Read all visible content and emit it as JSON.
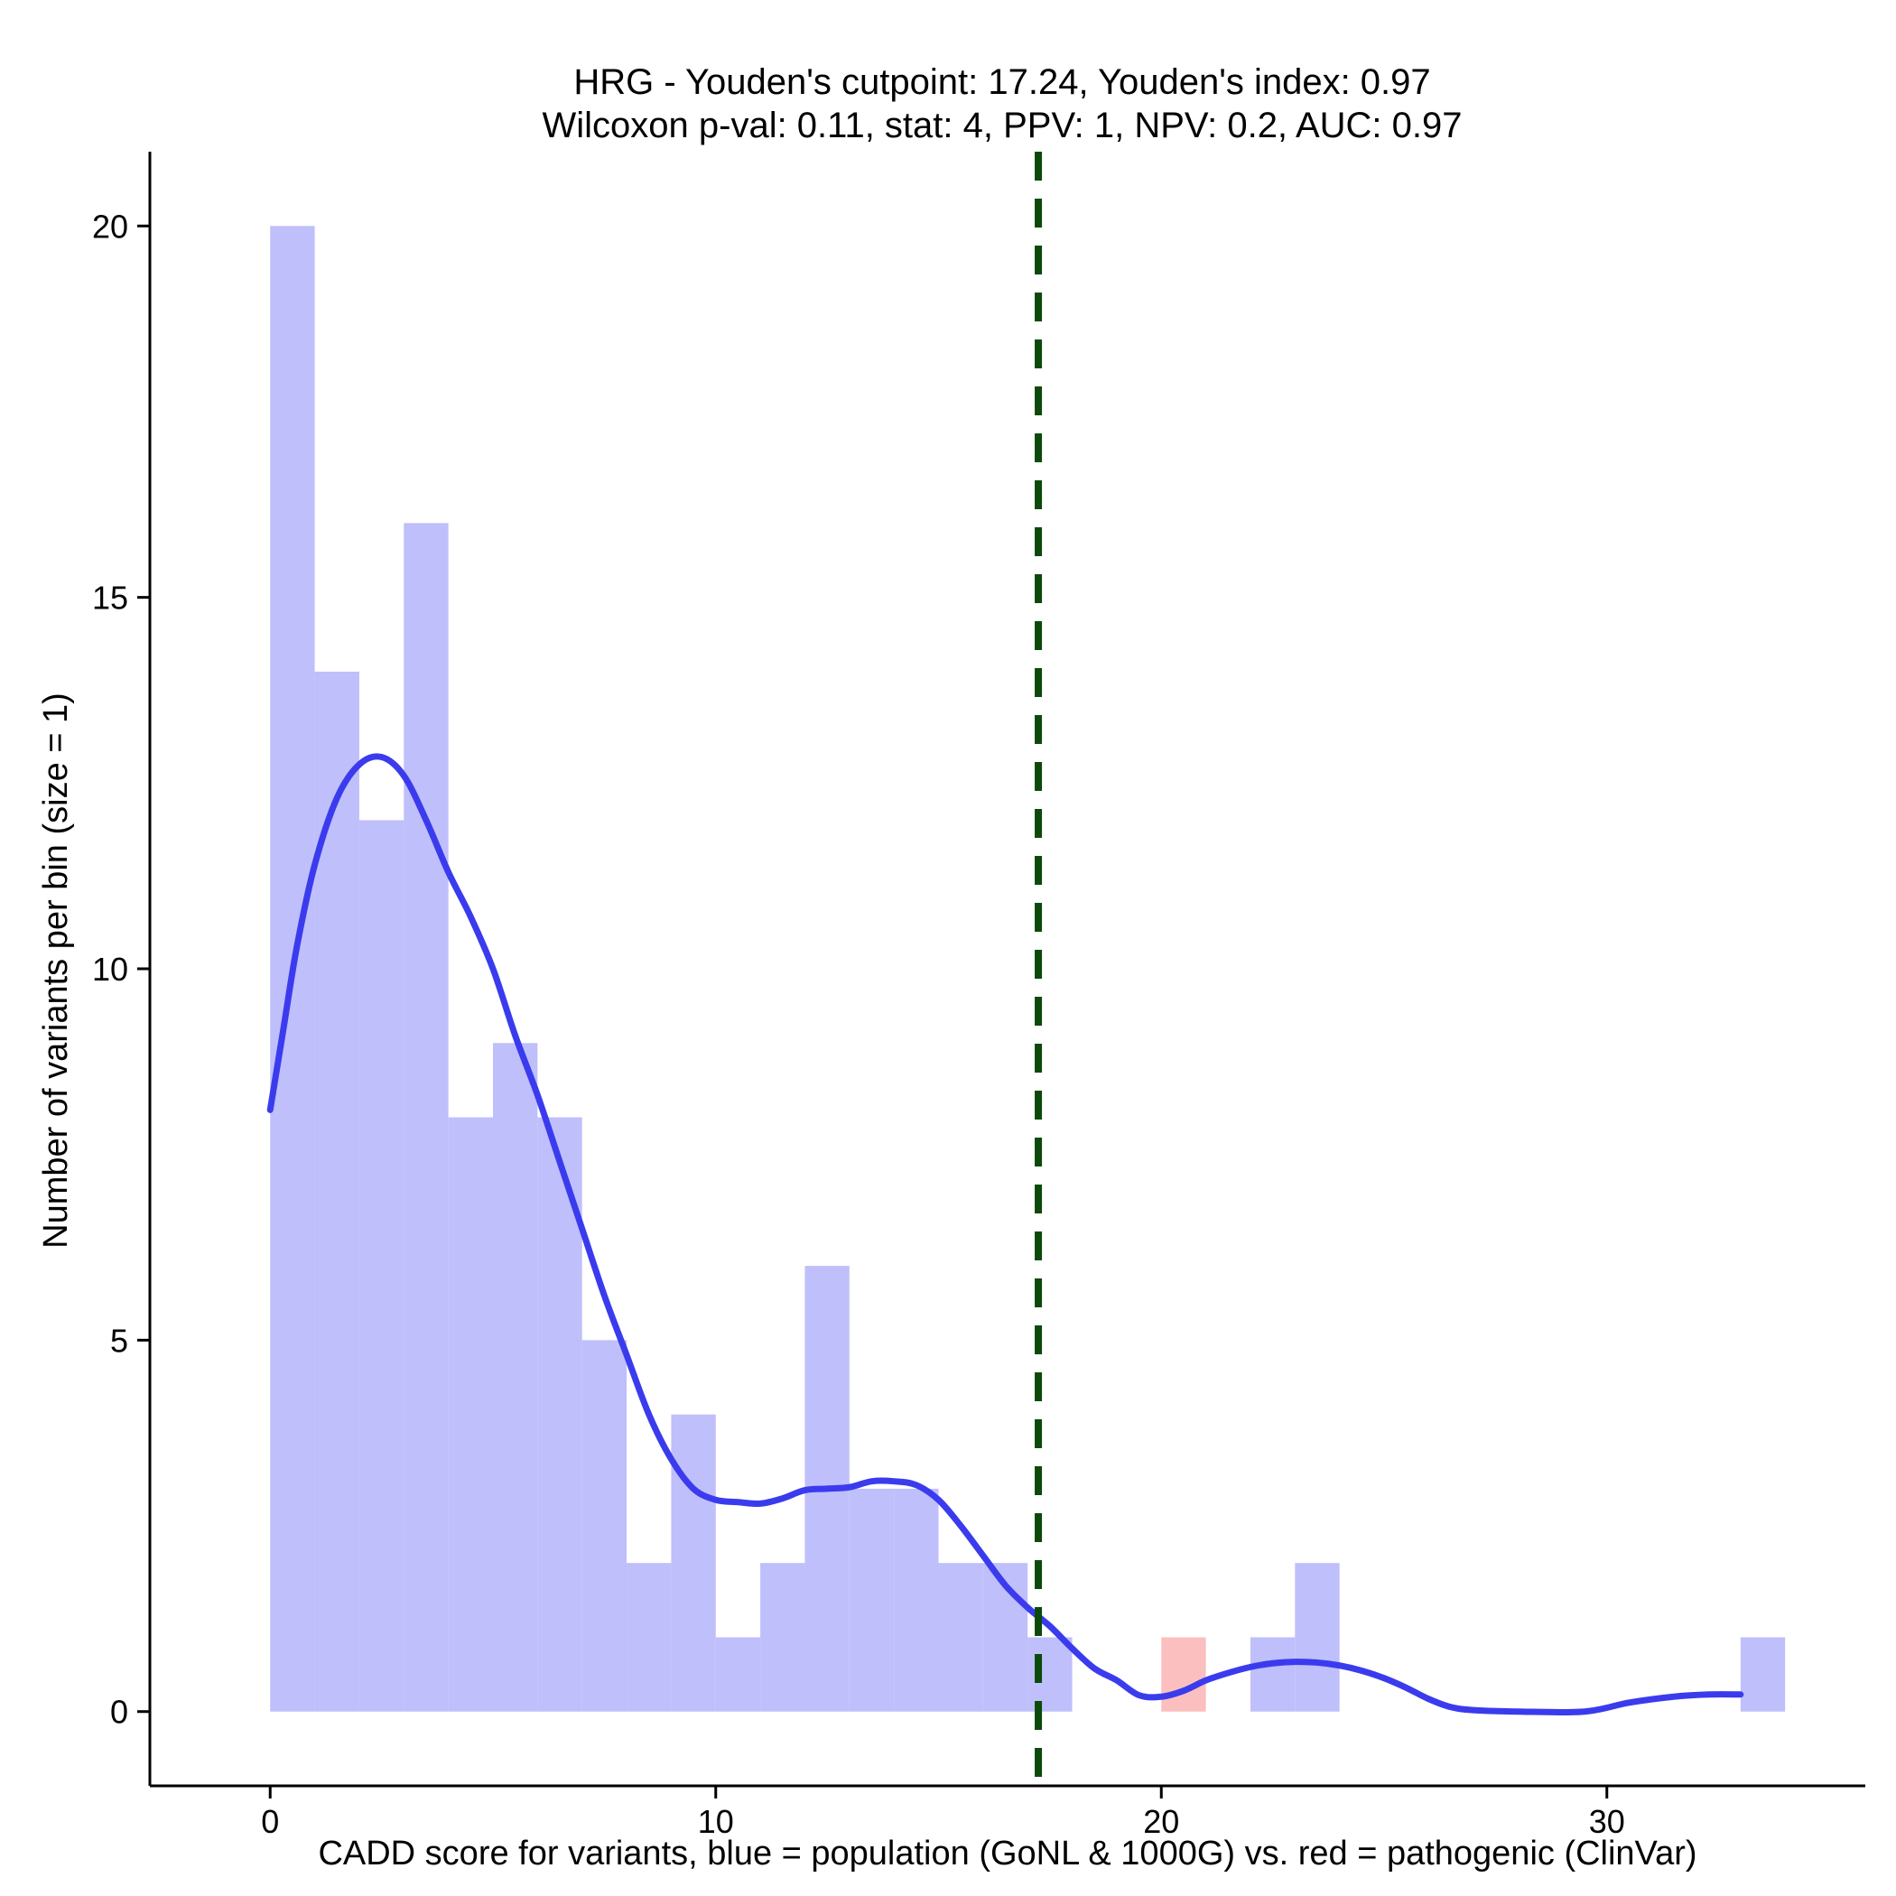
{
  "chart_data": {
    "type": "bar",
    "title_line1": "HRG - Youden's cutpoint: 17.24, Youden's index: 0.97",
    "title_line2": "Wilcoxon p-val: 0.11, stat: 4, PPV: 1, NPV: 0.2, AUC: 0.97",
    "xlabel": "CADD score for variants, blue = population (GoNL & 1000G) vs. red = pathogenic (ClinVar)",
    "ylabel": "Number of variants per bin (size = 1)",
    "xlim": [
      -2.7,
      35.8
    ],
    "ylim": [
      -1,
      21
    ],
    "xticks": [
      0,
      10,
      20,
      30
    ],
    "yticks": [
      0,
      5,
      10,
      15,
      20
    ],
    "bin_width": 1,
    "cutpoint": 17.24,
    "colors": {
      "population": "#bfbffb",
      "pathogenic": "#fbbfbf",
      "density": "#3b3bee",
      "cutpoint": "#0b4a0b"
    },
    "series": [
      {
        "name": "population",
        "bins": [
          {
            "x": 0,
            "count": 20
          },
          {
            "x": 1,
            "count": 14
          },
          {
            "x": 2,
            "count": 12
          },
          {
            "x": 3,
            "count": 16
          },
          {
            "x": 4,
            "count": 8
          },
          {
            "x": 5,
            "count": 9
          },
          {
            "x": 6,
            "count": 8
          },
          {
            "x": 7,
            "count": 5
          },
          {
            "x": 8,
            "count": 2
          },
          {
            "x": 9,
            "count": 4
          },
          {
            "x": 10,
            "count": 1
          },
          {
            "x": 11,
            "count": 2
          },
          {
            "x": 12,
            "count": 6
          },
          {
            "x": 13,
            "count": 3
          },
          {
            "x": 14,
            "count": 3
          },
          {
            "x": 15,
            "count": 2
          },
          {
            "x": 16,
            "count": 2
          },
          {
            "x": 17,
            "count": 1
          },
          {
            "x": 22,
            "count": 1
          },
          {
            "x": 23,
            "count": 2
          },
          {
            "x": 33,
            "count": 1
          }
        ]
      },
      {
        "name": "pathogenic",
        "bins": [
          {
            "x": 20,
            "count": 1
          }
        ]
      }
    ],
    "density_curve": [
      [
        0,
        8.1
      ],
      [
        0.3,
        9.2
      ],
      [
        0.6,
        10.3
      ],
      [
        1.0,
        11.4
      ],
      [
        1.5,
        12.3
      ],
      [
        2.0,
        12.75
      ],
      [
        2.5,
        12.85
      ],
      [
        3.0,
        12.6
      ],
      [
        3.5,
        12.0
      ],
      [
        4.0,
        11.3
      ],
      [
        4.5,
        10.7
      ],
      [
        5.0,
        10.0
      ],
      [
        5.5,
        9.1
      ],
      [
        6.0,
        8.3
      ],
      [
        6.5,
        7.4
      ],
      [
        7.0,
        6.5
      ],
      [
        7.5,
        5.6
      ],
      [
        8.0,
        4.8
      ],
      [
        8.5,
        4.0
      ],
      [
        9.0,
        3.4
      ],
      [
        9.5,
        3.0
      ],
      [
        10.0,
        2.85
      ],
      [
        10.5,
        2.82
      ],
      [
        11.0,
        2.8
      ],
      [
        11.5,
        2.87
      ],
      [
        12.0,
        2.98
      ],
      [
        12.5,
        3.0
      ],
      [
        13.0,
        3.02
      ],
      [
        13.5,
        3.1
      ],
      [
        14.0,
        3.1
      ],
      [
        14.5,
        3.05
      ],
      [
        15.0,
        2.85
      ],
      [
        15.5,
        2.5
      ],
      [
        16.0,
        2.1
      ],
      [
        16.5,
        1.7
      ],
      [
        17.0,
        1.4
      ],
      [
        17.5,
        1.15
      ],
      [
        18.0,
        0.85
      ],
      [
        18.5,
        0.58
      ],
      [
        19.0,
        0.42
      ],
      [
        19.5,
        0.22
      ],
      [
        20.0,
        0.2
      ],
      [
        20.5,
        0.28
      ],
      [
        21.0,
        0.42
      ],
      [
        21.5,
        0.52
      ],
      [
        22.0,
        0.6
      ],
      [
        22.5,
        0.65
      ],
      [
        23.0,
        0.67
      ],
      [
        23.5,
        0.66
      ],
      [
        24.0,
        0.62
      ],
      [
        24.5,
        0.55
      ],
      [
        25.0,
        0.45
      ],
      [
        25.5,
        0.32
      ],
      [
        26.0,
        0.17
      ],
      [
        26.5,
        0.06
      ],
      [
        27.0,
        0.02
      ],
      [
        28.0,
        0.0
      ],
      [
        29.5,
        0.0
      ],
      [
        30.5,
        0.12
      ],
      [
        31.5,
        0.2
      ],
      [
        32.3,
        0.23
      ],
      [
        33.0,
        0.23
      ]
    ]
  }
}
